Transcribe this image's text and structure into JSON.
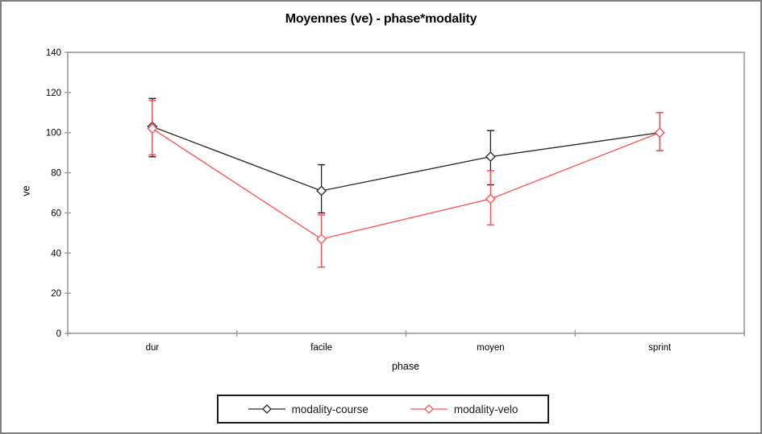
{
  "chart_data": {
    "type": "line",
    "title": "Moyennes (ve) - phase*modality",
    "xlabel": "phase",
    "ylabel": "ve",
    "ylim": [
      0,
      140
    ],
    "ytick_step": 20,
    "ytick_labels": [
      "0",
      "20",
      "40",
      "60",
      "80",
      "100",
      "120",
      "140"
    ],
    "categories": [
      "dur",
      "facile",
      "moyen",
      "sprint"
    ],
    "series": [
      {
        "name": "modality-course",
        "color": "#262626",
        "marker": "diamond-open",
        "values": [
          103,
          71,
          88,
          100
        ],
        "err_high": [
          117,
          84,
          101,
          110
        ],
        "err_low": [
          88,
          60,
          74,
          91
        ]
      },
      {
        "name": "modality-velo",
        "color": "#ff5050",
        "marker": "diamond-open",
        "values": [
          102,
          47,
          67,
          100
        ],
        "err_high": [
          116,
          59,
          81,
          110
        ],
        "err_low": [
          89,
          33,
          54,
          91
        ]
      }
    ],
    "legend_position": "bottom-center",
    "grid": false,
    "axis_color": "#9b9b9b",
    "plot_border": true,
    "error_bars": true
  }
}
